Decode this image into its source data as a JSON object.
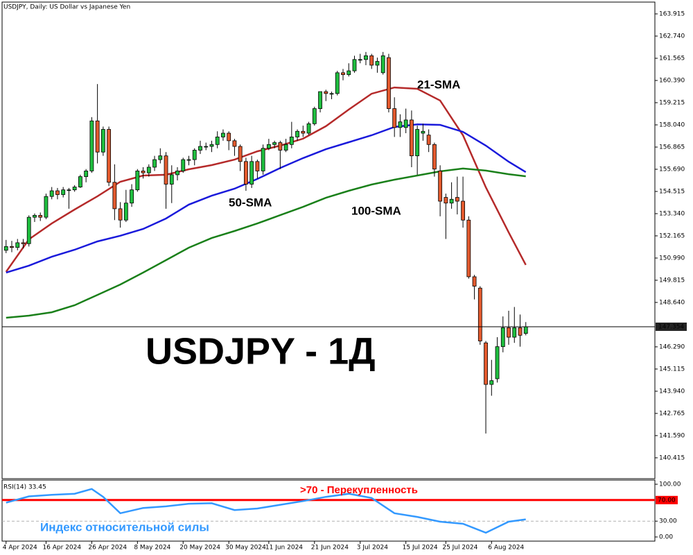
{
  "chart_data": [
    {
      "type": "candlestick",
      "title": "USDJPY, Daily:  US Dollar vs Japanese Yen",
      "up_color": "#1fbf3f",
      "down_color": "#e35a2e",
      "candles": [
        [
          151.4,
          151.95,
          151.25,
          151.6
        ],
        [
          151.6,
          151.9,
          151.3,
          151.55
        ],
        [
          151.55,
          152.0,
          151.4,
          151.8
        ],
        [
          151.8,
          152.0,
          151.5,
          151.75
        ],
        [
          151.75,
          153.25,
          151.6,
          153.15
        ],
        [
          153.15,
          153.35,
          152.9,
          153.25
        ],
        [
          153.25,
          153.4,
          152.95,
          153.15
        ],
        [
          153.15,
          154.4,
          153.05,
          154.25
        ],
        [
          154.25,
          154.75,
          154.1,
          154.55
        ],
        [
          154.55,
          154.7,
          154.1,
          154.35
        ],
        [
          154.35,
          154.75,
          154.2,
          154.6
        ],
        [
          154.6,
          154.7,
          153.6,
          154.6
        ],
        [
          154.6,
          154.85,
          154.5,
          154.75
        ],
        [
          154.75,
          155.4,
          154.7,
          155.3
        ],
        [
          155.3,
          155.7,
          155.0,
          155.6
        ],
        [
          155.6,
          158.45,
          155.5,
          158.25
        ],
        [
          158.25,
          160.2,
          156.0,
          156.6
        ],
        [
          156.6,
          157.95,
          156.4,
          157.8
        ],
        [
          157.8,
          157.95,
          154.8,
          155.0
        ],
        [
          155.0,
          155.95,
          153.0,
          153.6
        ],
        [
          153.6,
          153.95,
          152.6,
          153.0
        ],
        [
          153.0,
          154.6,
          152.9,
          153.9
        ],
        [
          153.9,
          154.9,
          153.7,
          154.6
        ],
        [
          154.6,
          155.7,
          154.5,
          155.6
        ],
        [
          155.6,
          155.8,
          155.2,
          155.5
        ],
        [
          155.5,
          155.95,
          155.3,
          155.8
        ],
        [
          155.8,
          156.4,
          155.6,
          156.2
        ],
        [
          156.2,
          156.8,
          156.0,
          156.4
        ],
        [
          156.4,
          156.6,
          153.6,
          154.9
        ],
        [
          154.9,
          155.9,
          153.9,
          155.4
        ],
        [
          155.4,
          155.8,
          155.1,
          155.6
        ],
        [
          155.6,
          156.3,
          155.5,
          156.2
        ],
        [
          156.2,
          156.4,
          155.9,
          156.2
        ],
        [
          156.2,
          156.8,
          155.9,
          156.7
        ],
        [
          156.7,
          157.2,
          156.5,
          156.9
        ],
        [
          156.9,
          157.1,
          156.7,
          156.9
        ],
        [
          156.9,
          157.2,
          156.6,
          157.0
        ],
        [
          157.0,
          157.7,
          156.8,
          157.4
        ],
        [
          157.4,
          157.8,
          157.2,
          157.6
        ],
        [
          157.6,
          157.7,
          156.7,
          157.2
        ],
        [
          157.2,
          157.3,
          156.4,
          156.9
        ],
        [
          156.9,
          157.0,
          155.6,
          156.1
        ],
        [
          156.1,
          156.3,
          154.55,
          154.9
        ],
        [
          154.9,
          156.4,
          154.7,
          156.1
        ],
        [
          156.1,
          156.2,
          155.2,
          155.6
        ],
        [
          155.6,
          157.0,
          155.4,
          156.8
        ],
        [
          156.8,
          157.3,
          156.7,
          157.0
        ],
        [
          157.0,
          157.2,
          156.8,
          157.1
        ],
        [
          157.1,
          157.2,
          155.7,
          156.7
        ],
        [
          156.7,
          157.3,
          156.6,
          157.0
        ],
        [
          157.0,
          158.2,
          156.8,
          157.4
        ],
        [
          157.4,
          157.8,
          157.2,
          157.7
        ],
        [
          157.7,
          158.0,
          157.4,
          157.6
        ],
        [
          157.6,
          158.2,
          157.5,
          158.1
        ],
        [
          158.1,
          159.0,
          158.0,
          158.9
        ],
        [
          158.9,
          159.8,
          158.7,
          159.8
        ],
        [
          159.8,
          159.9,
          159.3,
          159.7
        ],
        [
          159.7,
          159.8,
          159.4,
          159.7
        ],
        [
          159.7,
          160.9,
          159.6,
          160.8
        ],
        [
          160.8,
          161.0,
          160.4,
          160.7
        ],
        [
          160.7,
          161.3,
          160.6,
          160.9
        ],
        [
          160.9,
          161.7,
          160.8,
          161.5
        ],
        [
          161.5,
          161.8,
          161.3,
          161.5
        ],
        [
          161.5,
          161.9,
          161.2,
          161.7
        ],
        [
          161.7,
          161.8,
          161.0,
          161.2
        ],
        [
          161.2,
          161.6,
          160.8,
          161.4
        ],
        [
          160.8,
          161.9,
          160.7,
          161.7
        ],
        [
          161.6,
          161.8,
          158.7,
          158.9
        ],
        [
          158.9,
          159.5,
          157.4,
          157.9
        ],
        [
          157.9,
          158.6,
          157.4,
          158.2
        ],
        [
          157.9,
          158.9,
          157.6,
          158.3
        ],
        [
          158.3,
          158.8,
          155.8,
          156.4
        ],
        [
          156.4,
          158.0,
          155.4,
          157.8
        ],
        [
          157.6,
          158.1,
          157.2,
          157.7
        ],
        [
          157.5,
          157.8,
          156.6,
          157.0
        ],
        [
          157.0,
          157.1,
          155.3,
          155.7
        ],
        [
          155.6,
          155.9,
          153.2,
          154.0
        ],
        [
          154.2,
          154.4,
          152.0,
          153.9
        ],
        [
          153.9,
          155.0,
          153.6,
          154.1
        ],
        [
          154.2,
          155.3,
          153.3,
          154.0
        ],
        [
          154.0,
          155.3,
          152.6,
          153.0
        ],
        [
          153.0,
          153.2,
          149.9,
          150.0
        ],
        [
          150.0,
          150.1,
          148.8,
          149.5
        ],
        [
          149.4,
          149.5,
          146.4,
          146.6
        ],
        [
          146.5,
          146.6,
          141.7,
          144.3
        ],
        [
          144.3,
          145.6,
          143.7,
          144.5
        ],
        [
          144.6,
          146.8,
          144.4,
          146.3
        ],
        [
          146.3,
          147.9,
          146.0,
          147.3
        ],
        [
          147.3,
          148.2,
          146.4,
          146.8
        ],
        [
          146.8,
          148.4,
          146.5,
          147.3
        ],
        [
          147.3,
          148.0,
          146.3,
          146.9
        ],
        [
          147.0,
          147.6,
          146.9,
          147.354
        ]
      ],
      "xlim": [
        -0.7,
        113.6
      ],
      "xticks": [
        {
          "value": 0,
          "label": "4 Apr 2024"
        },
        {
          "value": 7,
          "label": "16 Apr 2024"
        },
        {
          "value": 15,
          "label": "26 Apr 2024"
        },
        {
          "value": 23,
          "label": "8 May 2024"
        },
        {
          "value": 31,
          "label": "20 May 2024"
        },
        {
          "value": 39,
          "label": "30 May 2024"
        },
        {
          "value": 46,
          "label": "11 Jun 2024"
        },
        {
          "value": 54,
          "label": "21 Jun 2024"
        },
        {
          "value": 62,
          "label": "3 Jul 2024"
        },
        {
          "value": 70,
          "label": "15 Jul 2024"
        },
        {
          "value": 77,
          "label": "25 Jul 2024"
        },
        {
          "value": 85,
          "label": "6 Aug 2024"
        }
      ],
      "ylim": [
        139.31,
        164.54
      ],
      "yticks": [
        {
          "value": 163.915,
          "label": "163.915"
        },
        {
          "value": 162.74,
          "label": "162.740"
        },
        {
          "value": 161.565,
          "label": "161.565"
        },
        {
          "value": 160.39,
          "label": "160.390"
        },
        {
          "value": 159.215,
          "label": "159.215"
        },
        {
          "value": 158.04,
          "label": "158.040"
        },
        {
          "value": 156.865,
          "label": "156.865"
        },
        {
          "value": 155.69,
          "label": "155.690"
        },
        {
          "value": 154.515,
          "label": "154.515"
        },
        {
          "value": 153.34,
          "label": "153.340"
        },
        {
          "value": 152.165,
          "label": "152.165"
        },
        {
          "value": 150.99,
          "label": "150.990"
        },
        {
          "value": 149.815,
          "label": "149.815"
        },
        {
          "value": 148.64,
          "label": "148.640"
        },
        {
          "value": 146.29,
          "label": "146.290"
        },
        {
          "value": 145.115,
          "label": "145.115"
        },
        {
          "value": 143.94,
          "label": "143.940"
        },
        {
          "value": 142.765,
          "label": "142.765"
        },
        {
          "value": 141.59,
          "label": "141.590"
        },
        {
          "value": 140.415,
          "label": "140.415"
        }
      ],
      "current_price": 147.354,
      "series": [
        {
          "name": "21-SMA",
          "color": "#b52a2a",
          "x": [
            0,
            4,
            8,
            12,
            16,
            20,
            24,
            28,
            32,
            36,
            40,
            44,
            48,
            52,
            56,
            60,
            64,
            68,
            72,
            76,
            80,
            84,
            88,
            91
          ],
          "values": [
            150.26,
            151.98,
            152.82,
            153.56,
            154.26,
            155.03,
            155.36,
            155.4,
            155.69,
            155.91,
            156.2,
            156.64,
            156.94,
            157.31,
            157.97,
            158.85,
            159.69,
            160.02,
            159.95,
            159.33,
            157.49,
            154.73,
            152.35,
            150.63
          ]
        },
        {
          "name": "50-SMA",
          "color": "#1a1adb",
          "x": [
            0,
            4,
            8,
            12,
            16,
            20,
            24,
            28,
            32,
            36,
            40,
            44,
            48,
            52,
            56,
            60,
            64,
            68,
            72,
            76,
            80,
            84,
            88,
            91
          ],
          "values": [
            150.22,
            150.59,
            151.06,
            151.43,
            151.87,
            152.17,
            152.53,
            153.08,
            153.82,
            154.29,
            154.66,
            155.18,
            155.76,
            156.28,
            156.75,
            157.12,
            157.49,
            157.93,
            158.07,
            158.04,
            157.67,
            156.94,
            156.09,
            155.54
          ]
        },
        {
          "name": "100-SMA",
          "color": "#1a801a",
          "x": [
            0,
            4,
            8,
            12,
            16,
            20,
            24,
            28,
            32,
            36,
            40,
            44,
            48,
            52,
            56,
            60,
            64,
            68,
            72,
            76,
            80,
            84,
            88,
            91
          ],
          "values": [
            147.83,
            147.94,
            148.12,
            148.49,
            149.04,
            149.59,
            150.22,
            150.88,
            151.54,
            152.05,
            152.42,
            152.82,
            153.26,
            153.7,
            154.18,
            154.55,
            154.88,
            155.14,
            155.36,
            155.58,
            155.73,
            155.62,
            155.43,
            155.32
          ]
        }
      ],
      "annotations": [
        "USDJPY - 1Д"
      ]
    },
    {
      "type": "line",
      "title": "RSI(14) 33.45",
      "series": [
        {
          "color": "#3399ff",
          "x": [
            0,
            4,
            8,
            12,
            15,
            17,
            20,
            24,
            28,
            32,
            36,
            40,
            44,
            48,
            52,
            56,
            60,
            64,
            68,
            72,
            76,
            80,
            84,
            88,
            91
          ],
          "values": [
            65,
            77,
            80,
            82,
            91,
            76,
            45,
            55,
            58,
            63,
            64,
            51,
            54,
            61,
            68,
            76,
            82,
            74,
            45,
            38,
            29,
            25,
            8,
            29,
            33.45
          ]
        }
      ],
      "xlim": [
        -0.7,
        113.6
      ],
      "ylim": [
        -7.9,
        107.9
      ],
      "yticks": [
        {
          "value": 100,
          "label": "100.00"
        },
        {
          "value": 30,
          "label": "30.00"
        },
        {
          "value": 0,
          "label": "0.00"
        }
      ],
      "levels": [
        {
          "value": 70,
          "label": "70.00",
          "color": "#ff0000"
        },
        {
          "value": 30,
          "color": "#b0b0b0"
        }
      ],
      "annotations": [
        ">70 - Перекупленность",
        "Индекс относительной силы"
      ]
    }
  ]
}
